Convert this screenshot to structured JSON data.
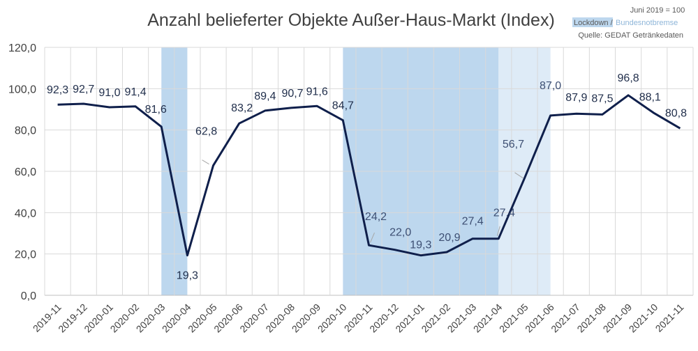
{
  "chart_data": {
    "type": "line",
    "title": "Anzahl belieferter Objekte Außer-Haus-Markt (Index)",
    "notes": {
      "base": "Juni 2019 = 100",
      "legend_lockdown": "Lockdown /",
      "legend_notbremse": "Bundesnotbremse",
      "source": "Quelle: GEDAT Getränkedaten"
    },
    "categories": [
      "2019-11",
      "2019-12",
      "2020-01",
      "2020-02",
      "2020-03",
      "2020-04",
      "2020-05",
      "2020-06",
      "2020-07",
      "2020-08",
      "2020-09",
      "2020-10",
      "2020-11",
      "2020-12",
      "2021-01",
      "2021-02",
      "2021-03",
      "2021-04",
      "2021-05",
      "2021-06",
      "2021-07",
      "2021-08",
      "2021-09",
      "2021-10",
      "2021-11"
    ],
    "series": [
      {
        "values": [
          92.3,
          92.7,
          91.0,
          91.4,
          81.6,
          19.3,
          62.8,
          83.2,
          89.4,
          90.7,
          91.6,
          84.7,
          24.2,
          22.0,
          19.3,
          20.9,
          27.4,
          27.4,
          56.7,
          87.0,
          87.9,
          87.5,
          96.8,
          88.1,
          80.8
        ]
      }
    ],
    "data_labels": [
      "92,3",
      "92,7",
      "91,0",
      "91,4",
      "81,6",
      "19,3",
      "62,8",
      "83,2",
      "89,4",
      "90,7",
      "91,6",
      "84,7",
      "24,2",
      "22,0",
      "19,3",
      "20,9",
      "27,4",
      "27,4",
      "56,7",
      "87,0",
      "87,9",
      "87,5",
      "96,8",
      "88,1",
      "80,8"
    ],
    "y_ticks": [
      "0,0",
      "20,0",
      "40,0",
      "60,0",
      "80,0",
      "100,0",
      "120,0"
    ],
    "ylim": [
      0,
      120
    ],
    "grid": true,
    "shaded_periods": [
      {
        "from": "2020-03",
        "to": "2020-04",
        "kind": "Lockdown",
        "color": "#bdd7ee"
      },
      {
        "from": "2020-10",
        "to": "2021-04",
        "kind": "Lockdown",
        "color": "#bdd7ee"
      },
      {
        "from": "2021-04",
        "to": "2021-06",
        "kind": "Bundesnotbremse",
        "color": "#deebf7"
      }
    ],
    "colors": {
      "line": "#0f1f4b",
      "lockdown": "#bdd7ee",
      "notbremse": "#deebf7"
    }
  }
}
